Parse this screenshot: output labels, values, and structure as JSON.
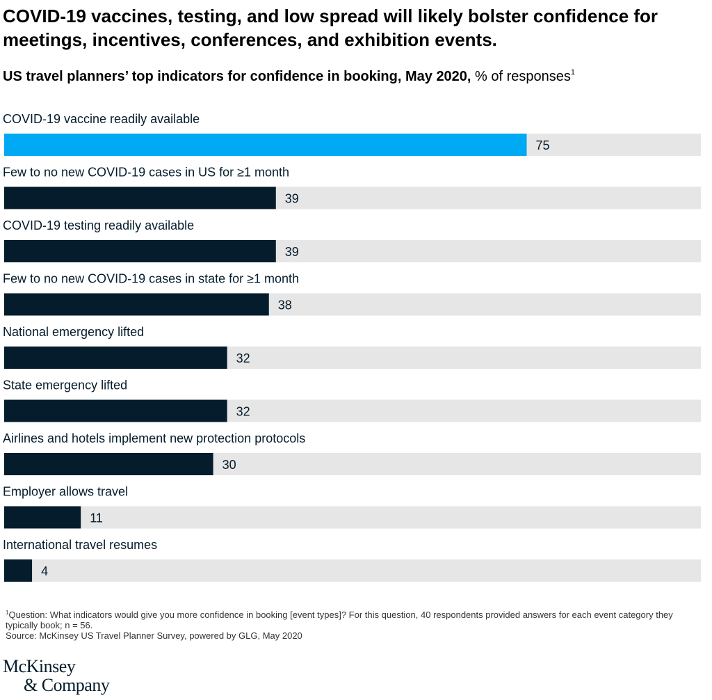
{
  "title": "COVID-19 vaccines, testing, and low spread will likely bolster confidence for meetings, incentives, conferences, and exhibition events.",
  "subtitle": {
    "bold": "US travel planners’ top indicators for confidence in booking, May 2020,",
    "regular": " % of responses",
    "superscript": "1"
  },
  "chart_data": {
    "type": "bar",
    "orientation": "horizontal",
    "unit": "% of responses",
    "xlim": [
      0,
      100
    ],
    "categories": [
      "COVID-19 vaccine readily available",
      "Few to no new COVID-19 cases in US for ≥1 month",
      "COVID-19  testing readily available",
      "Few to no new COVID-19 cases in state for ≥1 month",
      "National emergency lifted",
      "State emergency lifted",
      "Airlines and hotels implement new protection protocols",
      "Employer allows travel",
      "International travel resumes"
    ],
    "values": [
      75,
      39,
      39,
      38,
      32,
      32,
      30,
      11,
      4
    ],
    "highlight_index": 0
  },
  "colors": {
    "highlight": "#00a9f4",
    "bar": "#051c2c",
    "track": "#e6e6e6",
    "label": "#051c2c"
  },
  "footnote": {
    "superscript": "1",
    "question": "Question: What indicators would give you more confidence in booking [event types]? For this question, 40 respondents provided answers for each event category they typically book; n = 56.",
    "source": "Source: McKinsey US Travel Planner Survey, powered by GLG, May 2020"
  },
  "logo": {
    "line1": "McKinsey",
    "line2": "& Company"
  }
}
